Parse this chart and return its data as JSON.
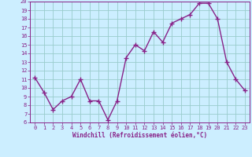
{
  "x": [
    0,
    1,
    2,
    3,
    4,
    5,
    6,
    7,
    8,
    9,
    10,
    11,
    12,
    13,
    14,
    15,
    16,
    17,
    18,
    19,
    20,
    21,
    22,
    23
  ],
  "y": [
    11.2,
    9.5,
    7.5,
    8.5,
    9.0,
    11.0,
    8.5,
    8.5,
    6.3,
    8.5,
    13.5,
    15.0,
    14.3,
    16.5,
    15.3,
    17.5,
    18.0,
    18.5,
    19.8,
    19.8,
    18.0,
    13.0,
    11.0,
    9.7
  ],
  "color": "#882288",
  "bg_color": "#cceeff",
  "grid_color": "#99cccc",
  "xlabel": "Windchill (Refroidissement éolien,°C)",
  "ylim": [
    6,
    20
  ],
  "xlim": [
    -0.5,
    23.5
  ],
  "yticks": [
    6,
    7,
    8,
    9,
    10,
    11,
    12,
    13,
    14,
    15,
    16,
    17,
    18,
    19,
    20
  ],
  "xticks": [
    0,
    1,
    2,
    3,
    4,
    5,
    6,
    7,
    8,
    9,
    10,
    11,
    12,
    13,
    14,
    15,
    16,
    17,
    18,
    19,
    20,
    21,
    22,
    23
  ],
  "marker": "P",
  "linewidth": 1.0,
  "markersize": 3.0
}
